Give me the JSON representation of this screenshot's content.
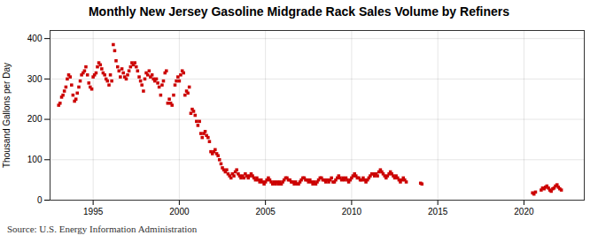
{
  "chart_data": {
    "type": "scatter",
    "title": "Monthly New Jersey Gasoline Midgrade Rack Sales Volume by Refiners",
    "ylabel": "Thousand Gallons per Day",
    "source": "Source: U.S. Energy Information Administration",
    "color": "#cc0000",
    "marker": "square",
    "grid": true,
    "xlim": [
      1992.5,
      2023.5
    ],
    "xticks": [
      1995,
      2000,
      2005,
      2010,
      2015,
      2020
    ],
    "ylim": [
      0,
      420
    ],
    "yticks": [
      0,
      100,
      200,
      300,
      400
    ],
    "x": [
      1993.0,
      1993.08,
      1993.17,
      1993.25,
      1993.33,
      1993.42,
      1993.5,
      1993.58,
      1993.67,
      1993.75,
      1993.83,
      1993.92,
      1994.0,
      1994.08,
      1994.17,
      1994.25,
      1994.33,
      1994.42,
      1994.5,
      1994.58,
      1994.67,
      1994.75,
      1994.83,
      1994.92,
      1995.0,
      1995.08,
      1995.17,
      1995.25,
      1995.33,
      1995.42,
      1995.5,
      1995.58,
      1995.67,
      1995.75,
      1995.83,
      1995.92,
      1996.0,
      1996.08,
      1996.17,
      1996.25,
      1996.33,
      1996.42,
      1996.5,
      1996.58,
      1996.67,
      1996.75,
      1996.83,
      1996.92,
      1997.0,
      1997.08,
      1997.17,
      1997.25,
      1997.33,
      1997.42,
      1997.5,
      1997.58,
      1997.67,
      1997.75,
      1997.83,
      1997.92,
      1998.0,
      1998.08,
      1998.17,
      1998.25,
      1998.33,
      1998.42,
      1998.5,
      1998.58,
      1998.67,
      1998.75,
      1998.83,
      1998.92,
      1999.0,
      1999.08,
      1999.17,
      1999.25,
      1999.33,
      1999.42,
      1999.5,
      1999.58,
      1999.67,
      1999.75,
      1999.83,
      1999.92,
      2000.0,
      2000.08,
      2000.17,
      2000.25,
      2000.33,
      2000.42,
      2000.5,
      2000.58,
      2000.67,
      2000.75,
      2000.83,
      2000.92,
      2001.0,
      2001.08,
      2001.17,
      2001.25,
      2001.33,
      2001.42,
      2001.5,
      2001.58,
      2001.67,
      2001.75,
      2001.83,
      2001.92,
      2002.0,
      2002.08,
      2002.17,
      2002.25,
      2002.33,
      2002.42,
      2002.5,
      2002.58,
      2002.67,
      2002.75,
      2002.83,
      2002.92,
      2003.0,
      2003.08,
      2003.17,
      2003.25,
      2003.33,
      2003.42,
      2003.5,
      2003.58,
      2003.67,
      2003.75,
      2003.83,
      2003.92,
      2004.0,
      2004.08,
      2004.17,
      2004.25,
      2004.33,
      2004.42,
      2004.5,
      2004.58,
      2004.67,
      2004.75,
      2004.83,
      2004.92,
      2005.0,
      2005.08,
      2005.17,
      2005.25,
      2005.33,
      2005.42,
      2005.5,
      2005.58,
      2005.67,
      2005.75,
      2005.83,
      2005.92,
      2006.0,
      2006.08,
      2006.17,
      2006.25,
      2006.33,
      2006.42,
      2006.5,
      2006.58,
      2006.67,
      2006.75,
      2006.83,
      2006.92,
      2007.0,
      2007.08,
      2007.17,
      2007.25,
      2007.33,
      2007.42,
      2007.5,
      2007.58,
      2007.67,
      2007.75,
      2007.83,
      2007.92,
      2008.0,
      2008.08,
      2008.17,
      2008.25,
      2008.33,
      2008.42,
      2008.5,
      2008.58,
      2008.67,
      2008.75,
      2008.83,
      2008.92,
      2009.0,
      2009.08,
      2009.17,
      2009.25,
      2009.33,
      2009.42,
      2009.5,
      2009.58,
      2009.67,
      2009.75,
      2009.83,
      2009.92,
      2010.0,
      2010.08,
      2010.17,
      2010.25,
      2010.33,
      2010.42,
      2010.5,
      2010.58,
      2010.67,
      2010.75,
      2010.83,
      2010.92,
      2011.0,
      2011.08,
      2011.17,
      2011.25,
      2011.33,
      2011.42,
      2011.5,
      2011.58,
      2011.67,
      2011.75,
      2011.83,
      2011.92,
      2012.0,
      2012.08,
      2012.17,
      2012.25,
      2012.33,
      2012.42,
      2012.5,
      2012.58,
      2012.67,
      2012.75,
      2012.83,
      2012.92,
      2013.0,
      2013.08,
      2013.17,
      2014.0,
      2014.08,
      2020.5,
      2020.58,
      2020.67,
      2021.0,
      2021.08,
      2021.17,
      2021.25,
      2021.33,
      2021.42,
      2021.5,
      2021.58,
      2021.67,
      2021.75,
      2021.83,
      2021.92,
      2022.0,
      2022.08,
      2022.17
    ],
    "values": [
      235,
      240,
      255,
      260,
      270,
      280,
      300,
      310,
      305,
      285,
      260,
      245,
      250,
      265,
      280,
      295,
      310,
      315,
      320,
      330,
      310,
      290,
      280,
      275,
      305,
      310,
      315,
      330,
      340,
      335,
      325,
      315,
      310,
      300,
      295,
      285,
      310,
      295,
      385,
      370,
      345,
      330,
      320,
      305,
      325,
      315,
      305,
      300,
      310,
      320,
      330,
      340,
      335,
      340,
      330,
      320,
      305,
      295,
      285,
      270,
      300,
      315,
      310,
      320,
      305,
      310,
      300,
      295,
      300,
      290,
      280,
      260,
      285,
      295,
      315,
      320,
      240,
      250,
      240,
      235,
      260,
      285,
      295,
      305,
      295,
      310,
      320,
      315,
      260,
      270,
      265,
      280,
      215,
      225,
      220,
      210,
      195,
      185,
      195,
      165,
      155,
      165,
      170,
      160,
      155,
      145,
      120,
      115,
      120,
      125,
      115,
      110,
      100,
      90,
      80,
      75,
      70,
      75,
      65,
      60,
      55,
      65,
      60,
      70,
      75,
      65,
      60,
      55,
      60,
      55,
      65,
      60,
      55,
      60,
      65,
      60,
      55,
      50,
      55,
      50,
      45,
      50,
      45,
      40,
      45,
      50,
      55,
      50,
      45,
      40,
      45,
      40,
      45,
      40,
      45,
      40,
      45,
      50,
      55,
      55,
      50,
      50,
      45,
      45,
      40,
      45,
      40,
      40,
      45,
      50,
      55,
      55,
      50,
      50,
      45,
      50,
      45,
      40,
      45,
      40,
      45,
      50,
      55,
      55,
      50,
      50,
      45,
      50,
      45,
      50,
      55,
      45,
      45,
      50,
      55,
      60,
      55,
      50,
      55,
      50,
      55,
      50,
      45,
      50,
      55,
      60,
      65,
      60,
      55,
      55,
      50,
      50,
      55,
      50,
      45,
      50,
      55,
      60,
      65,
      65,
      60,
      65,
      60,
      70,
      75,
      70,
      65,
      60,
      55,
      60,
      65,
      70,
      65,
      60,
      55,
      60,
      55,
      50,
      45,
      50,
      55,
      50,
      45,
      42,
      40,
      18,
      15,
      20,
      25,
      30,
      28,
      32,
      35,
      30,
      25,
      22,
      28,
      30,
      35,
      38,
      32,
      28,
      25
    ]
  }
}
